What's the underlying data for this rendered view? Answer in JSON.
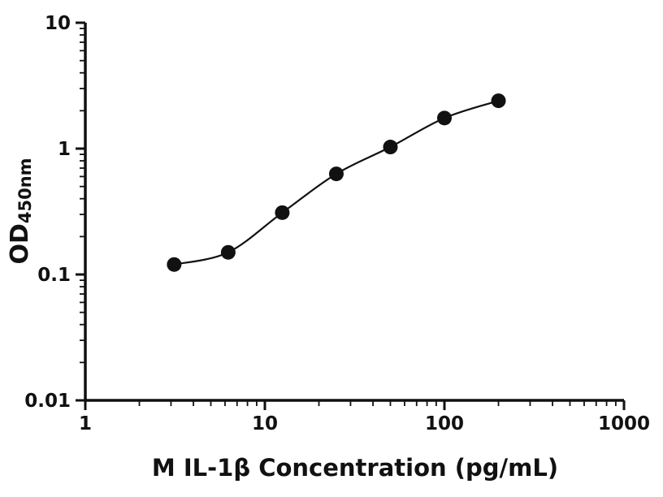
{
  "page": {
    "background": "#ffffff"
  },
  "chart_data": {
    "type": "scatter",
    "subtype": "standard-curve-with-fit-line",
    "title": "",
    "xlabel": "M IL-1β Concentration (pg/mL)",
    "ylabel_main": "OD",
    "ylabel_sub": "450nm",
    "x_scale": "log",
    "y_scale": "log",
    "xlim": [
      1,
      1000
    ],
    "ylim": [
      0.01,
      10
    ],
    "x_ticks": [
      {
        "value": 1,
        "label": "1"
      },
      {
        "value": 10,
        "label": "10"
      },
      {
        "value": 100,
        "label": "100"
      },
      {
        "value": 1000,
        "label": "1000"
      }
    ],
    "y_ticks": [
      {
        "value": 0.01,
        "label": "0.01"
      },
      {
        "value": 0.1,
        "label": "0.1"
      },
      {
        "value": 1,
        "label": "1"
      },
      {
        "value": 10,
        "label": "10"
      }
    ],
    "minor_ticks": true,
    "points": [
      {
        "x": 3.125,
        "y": 0.12
      },
      {
        "x": 6.25,
        "y": 0.15
      },
      {
        "x": 12.5,
        "y": 0.31
      },
      {
        "x": 25,
        "y": 0.63
      },
      {
        "x": 50,
        "y": 1.03
      },
      {
        "x": 100,
        "y": 1.75
      },
      {
        "x": 200,
        "y": 2.4
      }
    ],
    "marker_color": "#111111",
    "marker_radius": 9,
    "line_color": "#111111",
    "axis_color": "#111111"
  }
}
